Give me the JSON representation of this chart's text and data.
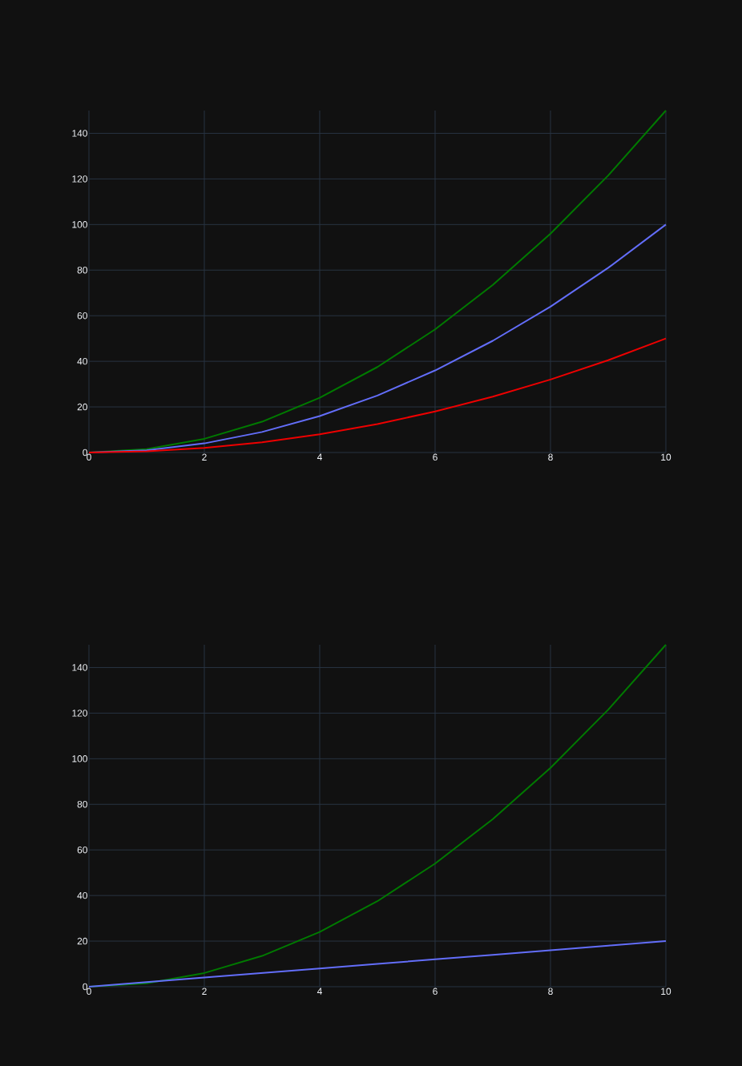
{
  "chart_data": [
    {
      "type": "line",
      "x": [
        0,
        1,
        2,
        3,
        4,
        5,
        6,
        7,
        8,
        9,
        10
      ],
      "xlim": [
        0,
        10
      ],
      "ylim": [
        0,
        150
      ],
      "xticks": [
        0,
        2,
        4,
        6,
        8,
        10
      ],
      "yticks": [
        0,
        20,
        40,
        60,
        80,
        100,
        120,
        140
      ],
      "grid": true,
      "series": [
        {
          "color": "#007a00",
          "values": [
            0,
            1.5,
            6,
            13.5,
            24,
            37.5,
            54,
            73.5,
            96,
            121.5,
            150
          ]
        },
        {
          "color": "#636efa",
          "values": [
            0,
            1,
            4,
            9,
            16,
            25,
            36,
            49,
            64,
            81,
            100
          ]
        },
        {
          "color": "#ee0000",
          "values": [
            0,
            0.5,
            2,
            4.5,
            8,
            12.5,
            18,
            24.5,
            32,
            40.5,
            50
          ]
        }
      ]
    },
    {
      "type": "line",
      "x": [
        0,
        1,
        2,
        3,
        4,
        5,
        6,
        7,
        8,
        9,
        10
      ],
      "xlim": [
        0,
        10
      ],
      "ylim": [
        0,
        150
      ],
      "xticks": [
        0,
        2,
        4,
        6,
        8,
        10
      ],
      "yticks": [
        0,
        20,
        40,
        60,
        80,
        100,
        120,
        140
      ],
      "grid": true,
      "series": [
        {
          "color": "#007a00",
          "values": [
            0,
            1.5,
            6,
            13.5,
            24,
            37.5,
            54,
            73.5,
            96,
            121.5,
            150
          ]
        },
        {
          "color": "#636efa",
          "values": [
            0,
            2,
            4,
            6,
            8,
            10,
            12,
            14,
            16,
            18,
            20
          ]
        }
      ]
    }
  ]
}
